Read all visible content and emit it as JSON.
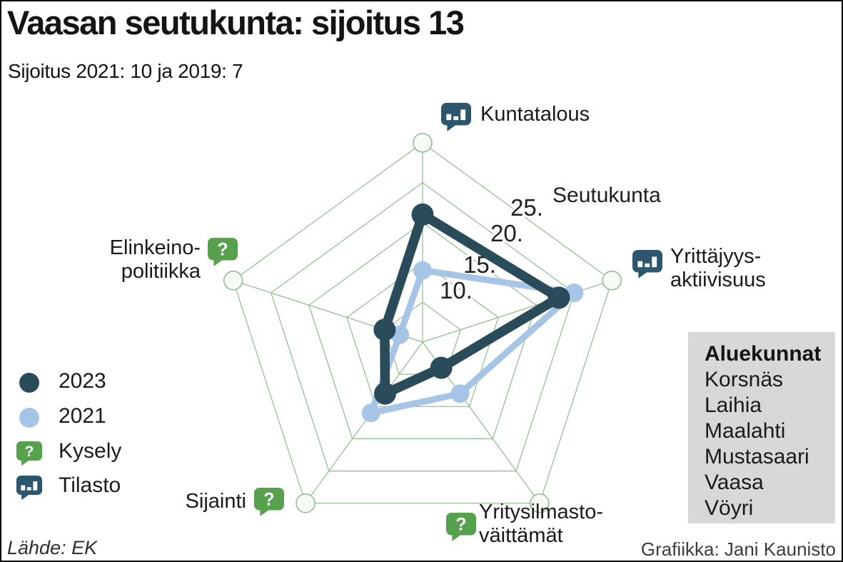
{
  "header": {
    "title": "Vaasan seutukunta: sijoitus 13",
    "subtitle": "Sijoitus 2021: 10 ja 2019: 7"
  },
  "chart_data": {
    "type": "radar",
    "scale_label": "Seutukunta",
    "max": 25,
    "grid_step": 5,
    "ticks": [
      "25.",
      "20.",
      "15.",
      "10."
    ],
    "tick_values": [
      25,
      20,
      15,
      10
    ],
    "grid_color": "#8cbb8c",
    "axes": [
      {
        "label": "Kuntatalous",
        "lines": [
          "Kuntatalous"
        ],
        "icon": "tilasto"
      },
      {
        "label": "Yrittäjyys-aktiivisuus",
        "lines": [
          "Yrittäjyys-",
          "aktiivisuus"
        ],
        "icon": "tilasto"
      },
      {
        "label": "Yritysilmasto-väittämät",
        "lines": [
          "Yritysilmasto-",
          "väittämät"
        ],
        "icon": "kysely"
      },
      {
        "label": "Sijainti",
        "lines": [
          "Sijainti"
        ],
        "icon": "kysely"
      },
      {
        "label": "Elinkeino-politiikka",
        "lines": [
          "Elinkeino-",
          "politiikka"
        ],
        "icon": "kysely"
      }
    ],
    "series": [
      {
        "name": "2023",
        "color": "#2a4b59",
        "values": [
          16,
          18,
          4,
          8,
          5
        ]
      },
      {
        "name": "2021",
        "color": "#a6c5e6",
        "values": [
          9,
          20,
          8,
          11,
          3
        ]
      }
    ]
  },
  "icon_colors": {
    "kysely": "#56a04e",
    "tilasto": "#2b566b"
  },
  "legend": {
    "items": [
      {
        "label": "2023",
        "type": "circle",
        "color": "#2a4b59"
      },
      {
        "label": "2021",
        "type": "circle",
        "color": "#a6c5e6"
      },
      {
        "label": "Kysely",
        "type": "kysely",
        "color": "#56a04e"
      },
      {
        "label": "Tilasto",
        "type": "tilasto",
        "color": "#2b566b"
      }
    ]
  },
  "sidebar": {
    "title": "Aluekunnat",
    "items": [
      "Korsnäs",
      "Laihia",
      "Maalahti",
      "Mustasaari",
      "Vaasa",
      "Vöyri"
    ]
  },
  "footer": {
    "source": "Lähde: EK",
    "credit": "Grafiikka: Jani Kaunisto"
  }
}
